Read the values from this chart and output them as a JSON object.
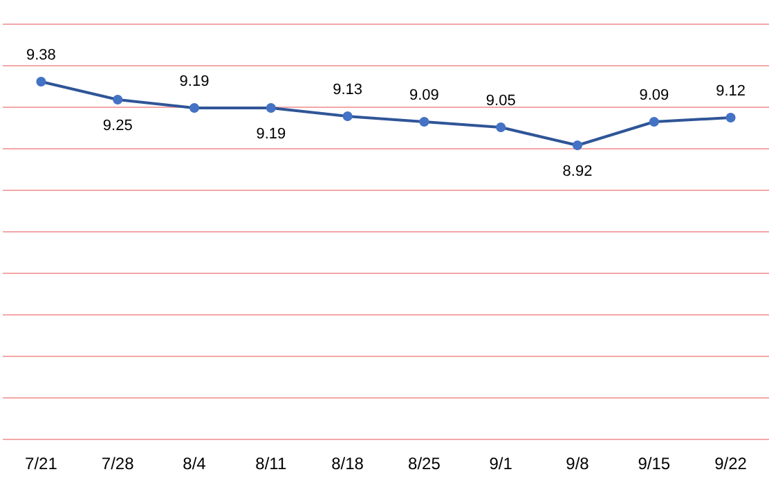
{
  "chart_data": {
    "type": "line",
    "categories": [
      "7/21",
      "7/28",
      "8/4",
      "8/11",
      "8/18",
      "8/25",
      "9/1",
      "9/8",
      "9/15",
      "9/22"
    ],
    "series": [
      {
        "color": "#2f5597",
        "values": [
          9.38,
          9.25,
          9.19,
          9.19,
          9.13,
          9.09,
          9.05,
          8.92,
          9.09,
          9.12
        ]
      }
    ],
    "ylim": [
      6.8,
      9.8
    ],
    "yticks": [
      6.8,
      7.1,
      7.4,
      7.7,
      8,
      8.3,
      8.6,
      8.9,
      9.2,
      9.5,
      9.8
    ],
    "tick_labels": "x",
    "grid": "y",
    "marker": "circle",
    "data_labels": true
  }
}
